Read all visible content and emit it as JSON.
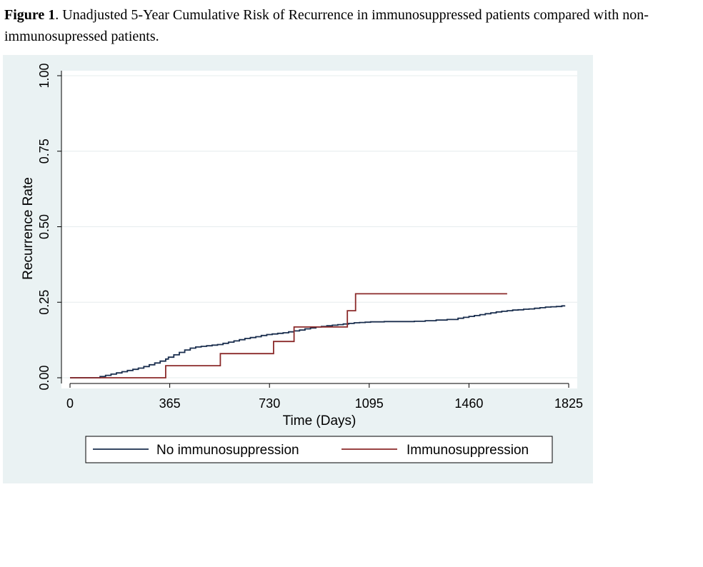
{
  "caption": {
    "label": "Figure 1",
    "text": ". Unadjusted 5-Year Cumulative Risk of Recurrence in immunosuppressed patients compared with non-immunosupressed patients."
  },
  "chart_data": {
    "type": "line",
    "step": true,
    "xlabel": "Time (Days)",
    "ylabel": "Recurrence Rate",
    "xlim": [
      0,
      1825
    ],
    "ylim": [
      0,
      1
    ],
    "xticks": [
      0,
      365,
      730,
      1095,
      1460,
      1825
    ],
    "xtick_labels": [
      "0",
      "365",
      "730",
      "1095",
      "1460",
      "1825"
    ],
    "yticks": [
      0,
      0.25,
      0.5,
      0.75,
      1.0
    ],
    "ytick_labels": [
      "0.00",
      "0.25",
      "0.50",
      "0.75",
      "1.00"
    ],
    "grid": true,
    "legend_position": "bottom",
    "colors": {
      "panel_bg": "#eaf2f3",
      "plot_bg": "#ffffff",
      "grid": "#e6ecee"
    },
    "series": [
      {
        "name": "No immunosuppression",
        "color": "#1a2e4e",
        "x": [
          0,
          100,
          110,
          130,
          150,
          170,
          190,
          210,
          230,
          250,
          270,
          290,
          310,
          330,
          350,
          360,
          380,
          400,
          420,
          440,
          460,
          480,
          500,
          520,
          540,
          560,
          580,
          600,
          620,
          640,
          660,
          680,
          700,
          720,
          740,
          760,
          780,
          800,
          820,
          840,
          860,
          880,
          900,
          920,
          940,
          960,
          980,
          1000,
          1020,
          1040,
          1060,
          1080,
          1100,
          1150,
          1200,
          1260,
          1300,
          1340,
          1380,
          1420,
          1440,
          1460,
          1480,
          1500,
          1520,
          1540,
          1560,
          1580,
          1600,
          1620,
          1640,
          1660,
          1680,
          1700,
          1720,
          1740,
          1760,
          1780,
          1800,
          1810
        ],
        "y": [
          0,
          0,
          0.004,
          0.008,
          0.012,
          0.016,
          0.02,
          0.024,
          0.028,
          0.032,
          0.037,
          0.043,
          0.049,
          0.055,
          0.062,
          0.068,
          0.076,
          0.084,
          0.092,
          0.098,
          0.102,
          0.104,
          0.106,
          0.108,
          0.11,
          0.114,
          0.118,
          0.122,
          0.126,
          0.13,
          0.133,
          0.136,
          0.14,
          0.143,
          0.145,
          0.147,
          0.149,
          0.152,
          0.155,
          0.158,
          0.162,
          0.165,
          0.168,
          0.17,
          0.172,
          0.174,
          0.176,
          0.178,
          0.18,
          0.182,
          0.183,
          0.184,
          0.185,
          0.186,
          0.186,
          0.187,
          0.189,
          0.191,
          0.193,
          0.197,
          0.2,
          0.203,
          0.206,
          0.209,
          0.212,
          0.215,
          0.218,
          0.22,
          0.222,
          0.224,
          0.225,
          0.227,
          0.228,
          0.23,
          0.232,
          0.234,
          0.235,
          0.236,
          0.238,
          0.24
        ]
      },
      {
        "name": "Immunosuppression",
        "color": "#8b2a2a",
        "x": [
          0,
          350,
          550,
          745,
          820,
          1015,
          1045,
          1600
        ],
        "y": [
          0,
          0.04,
          0.08,
          0.12,
          0.168,
          0.222,
          0.278,
          0.278
        ]
      }
    ]
  }
}
